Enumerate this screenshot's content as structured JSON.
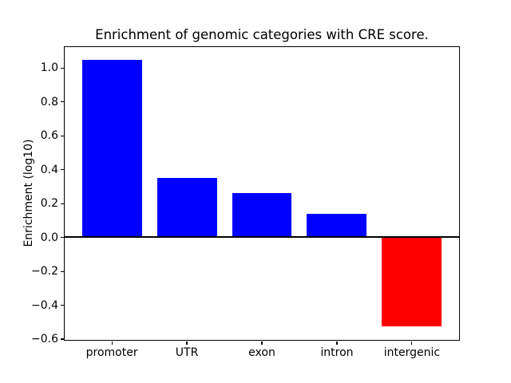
{
  "figure": {
    "background": "#ffffff",
    "frame_color": "#000000"
  },
  "chart_data": {
    "type": "bar",
    "title": "Enrichment of genomic categories with CRE score.",
    "ylabel": "Enrichment (log10)",
    "xlabel": "",
    "categories": [
      "promoter",
      "UTR",
      "exon",
      "intron",
      "intergenic"
    ],
    "values": [
      1.05,
      0.35,
      0.26,
      0.14,
      -0.53
    ],
    "bar_colors": [
      "#0000ff",
      "#0000ff",
      "#0000ff",
      "#0000ff",
      "#ff0000"
    ],
    "positive_color": "#0000ff",
    "negative_color": "#ff0000",
    "bar_width": 0.8,
    "ylim": [
      -0.61,
      1.13
    ],
    "xlim": [
      -0.64,
      4.64
    ],
    "yticks": [
      1.0,
      0.8,
      0.6,
      0.4,
      0.2,
      0.0,
      -0.2,
      -0.4,
      -0.6
    ],
    "ytick_labels": [
      "1.0",
      "0.8",
      "0.6",
      "0.4",
      "0.2",
      "0.0",
      "−0.2",
      "−0.4",
      "−0.6"
    ],
    "grid": false,
    "zero_line": true,
    "legend": false
  }
}
